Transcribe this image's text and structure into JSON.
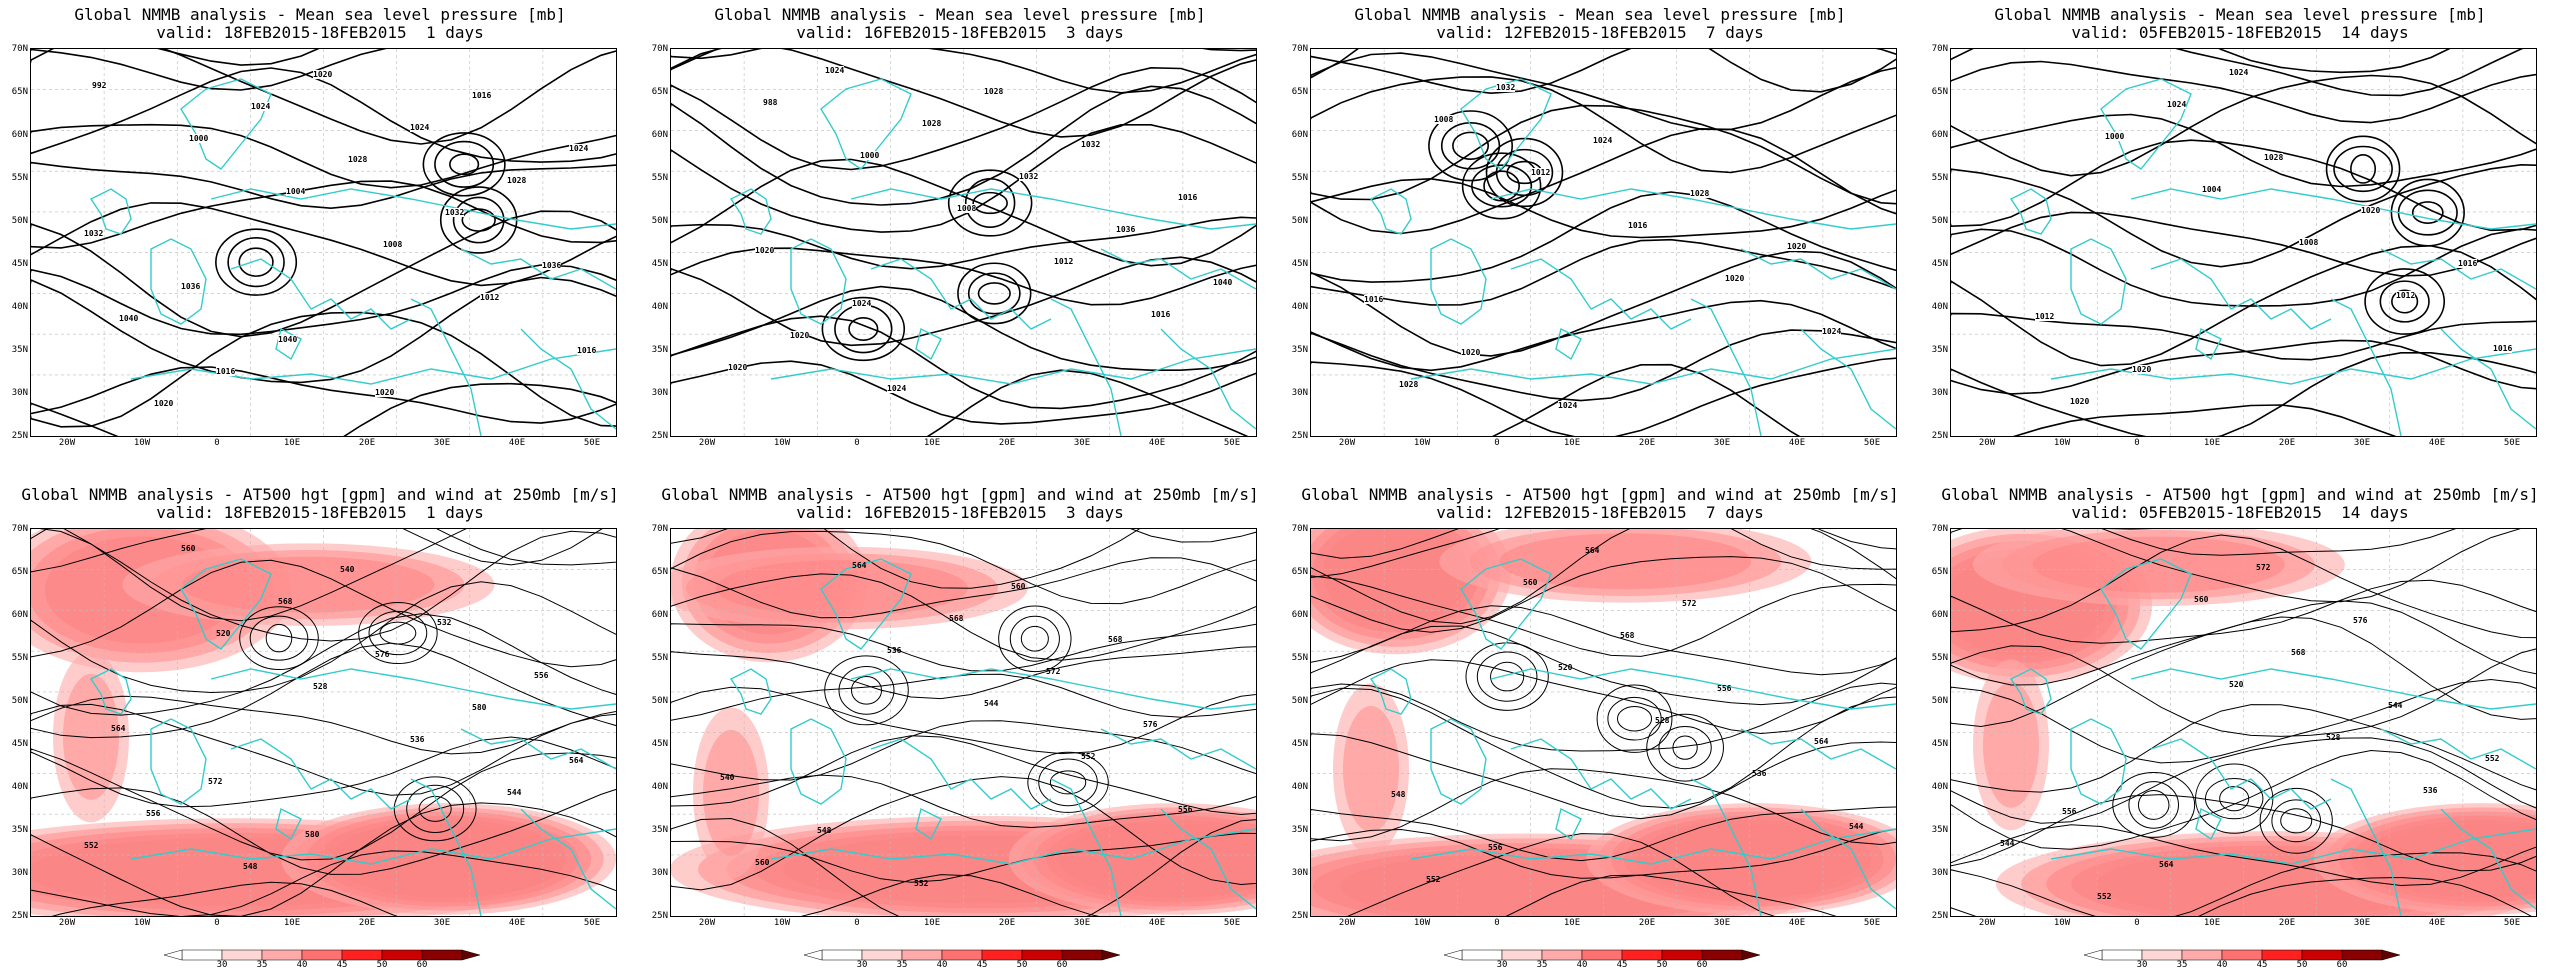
{
  "panels": [
    {
      "row": 0,
      "title": "Global NMMB analysis - Mean sea level pressure [mb]",
      "subtitle": "valid: 18FEB2015-18FEB2015  1 days",
      "labels": [
        "992",
        "1000",
        "1004",
        "1008",
        "1012",
        "1016",
        "1020",
        "1024",
        "1028",
        "1032",
        "1036",
        "1040",
        "1016",
        "1020",
        "1024",
        "1028",
        "1032",
        "1036",
        "1040",
        "1020",
        "1016",
        "1024"
      ],
      "seed": 1
    },
    {
      "row": 0,
      "title": "Global NMMB analysis - Mean sea level pressure [mb]",
      "subtitle": "valid: 16FEB2015-18FEB2015  3 days",
      "labels": [
        "988",
        "1000",
        "1008",
        "1012",
        "1016",
        "1020",
        "1024",
        "1028",
        "1032",
        "1036",
        "1040",
        "1020",
        "1024",
        "1028",
        "1032",
        "1016",
        "1020",
        "1024"
      ],
      "seed": 2
    },
    {
      "row": 0,
      "title": "Global NMMB analysis - Mean sea level pressure [mb]",
      "subtitle": "valid: 12FEB2015-18FEB2015  7 days",
      "labels": [
        "1008",
        "1012",
        "1016",
        "1020",
        "1024",
        "1028",
        "1032",
        "1024",
        "1028",
        "1020",
        "1016",
        "1020",
        "1024"
      ],
      "seed": 3
    },
    {
      "row": 0,
      "title": "Global NMMB analysis - Mean sea level pressure [mb]",
      "subtitle": "valid: 05FEB2015-18FEB2015  14 days",
      "labels": [
        "1000",
        "1004",
        "1008",
        "1012",
        "1016",
        "1020",
        "1024",
        "1028",
        "1020",
        "1016",
        "1012",
        "1020",
        "1024"
      ],
      "seed": 4
    },
    {
      "row": 1,
      "title": "Global NMMB analysis - AT500 hgt [gpm] and wind at 250mb [m/s]",
      "subtitle": "valid: 18FEB2015-18FEB2015  1 days",
      "labels": [
        "520",
        "528",
        "536",
        "544",
        "552",
        "560",
        "568",
        "576",
        "580",
        "564",
        "556",
        "548",
        "540",
        "532",
        "556",
        "564",
        "572",
        "580"
      ],
      "seed": 5
    },
    {
      "row": 1,
      "title": "Global NMMB analysis - AT500 hgt [gpm] and wind at 250mb [m/s]",
      "subtitle": "valid: 16FEB2015-18FEB2015  3 days",
      "labels": [
        "536",
        "544",
        "552",
        "556",
        "560",
        "564",
        "568",
        "572",
        "576",
        "540",
        "548",
        "552",
        "560",
        "568"
      ],
      "seed": 6
    },
    {
      "row": 1,
      "title": "Global NMMB analysis - AT500 hgt [gpm] and wind at 250mb [m/s]",
      "subtitle": "valid: 12FEB2015-18FEB2015  7 days",
      "labels": [
        "520",
        "528",
        "536",
        "544",
        "552",
        "560",
        "568",
        "556",
        "564",
        "548",
        "556",
        "564",
        "572"
      ],
      "seed": 7
    },
    {
      "row": 1,
      "title": "Global NMMB analysis - AT500 hgt [gpm] and wind at 250mb [m/s]",
      "subtitle": "valid: 05FEB2015-18FEB2015  14 days",
      "labels": [
        "520",
        "528",
        "536",
        "544",
        "552",
        "560",
        "568",
        "544",
        "552",
        "556",
        "564",
        "572",
        "576"
      ],
      "seed": 8
    }
  ],
  "axes": {
    "lat_labels": [
      "70N",
      "65N",
      "60N",
      "55N",
      "50N",
      "45N",
      "40N",
      "35N",
      "30N",
      "25N"
    ],
    "lon_labels": [
      "20W",
      "10W",
      "0",
      "10E",
      "20E",
      "30E",
      "40E",
      "50E"
    ]
  },
  "colorbar": {
    "ticks": [
      "30",
      "35",
      "40",
      "45",
      "50",
      "60"
    ],
    "colors": [
      "#ffffff",
      "#ffd6d6",
      "#ffaaaa",
      "#ff7070",
      "#ff2020",
      "#cc0000",
      "#880000"
    ]
  },
  "colors": {
    "coast": "#33cccc",
    "contour": "#000000",
    "grid": "#bbbbbb"
  }
}
